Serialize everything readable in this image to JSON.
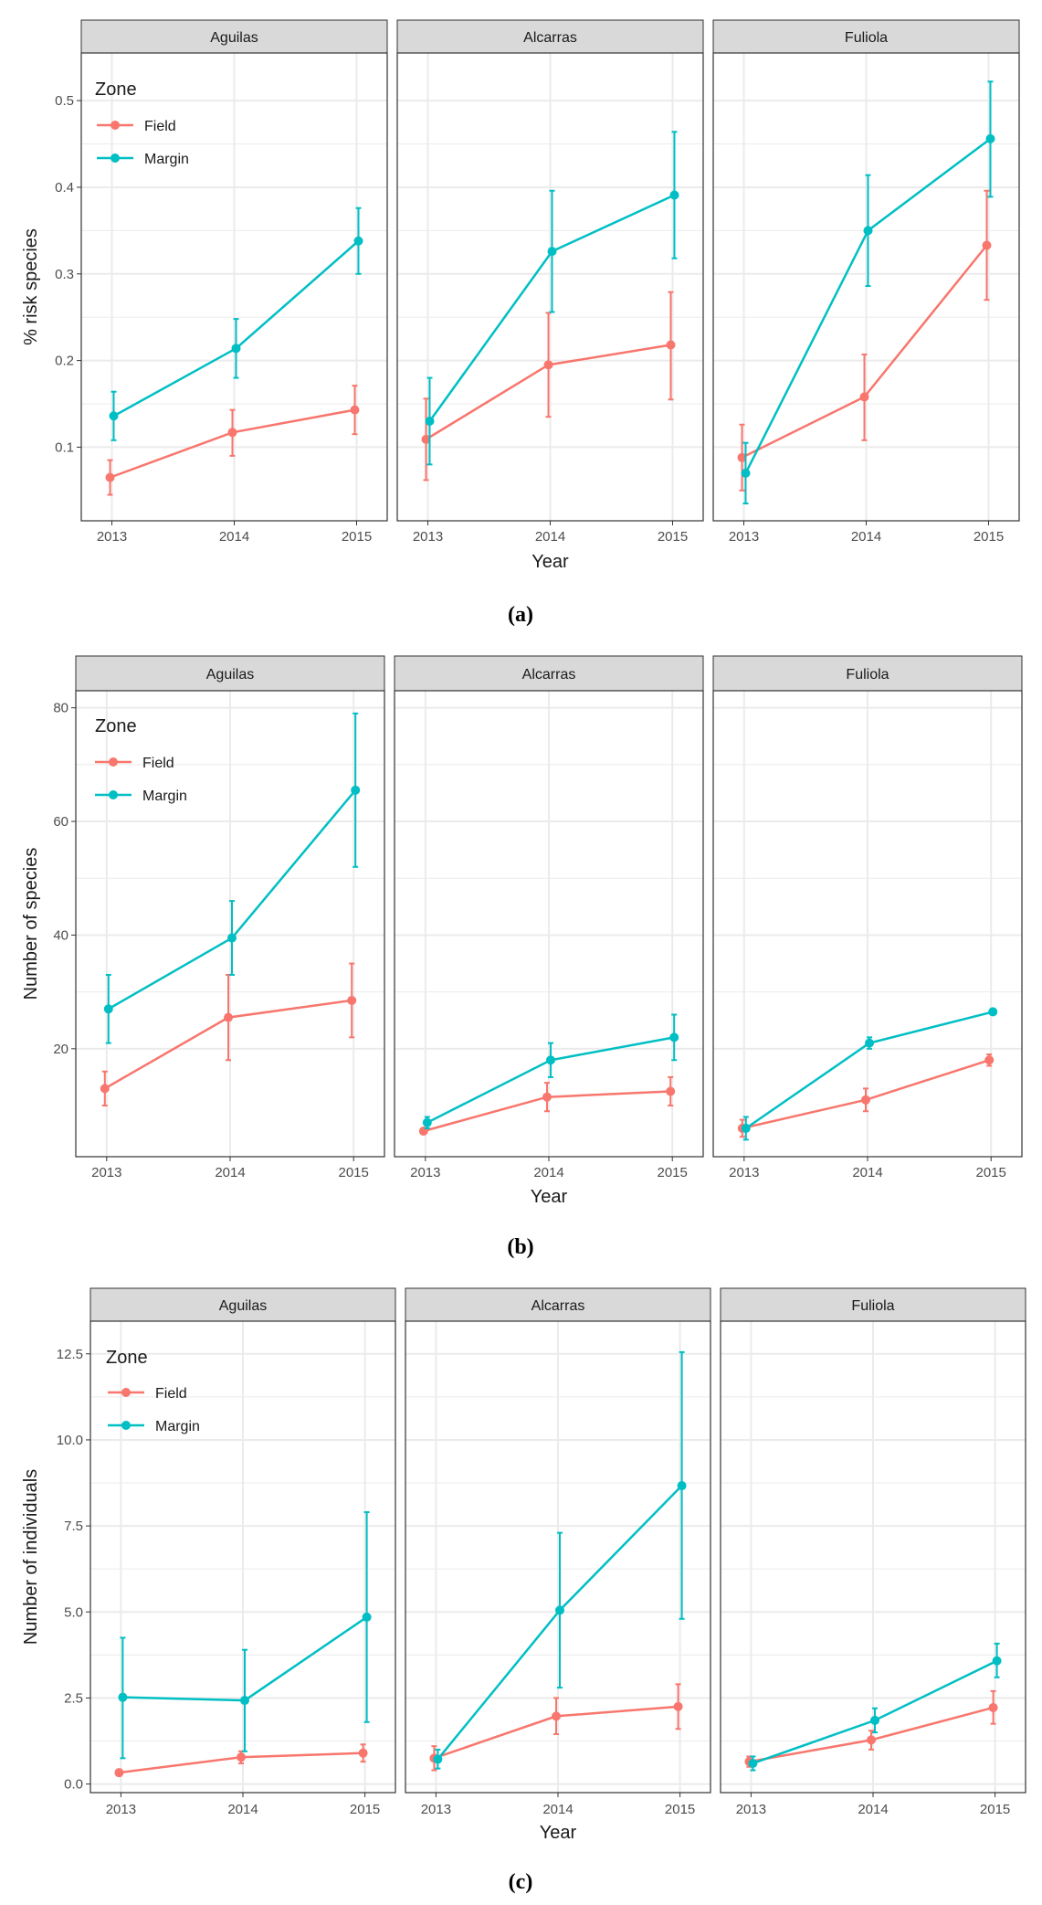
{
  "chart_data": [
    {
      "type": "line",
      "caption": "(a)",
      "ylabel": "% risk species",
      "xlabel": "Year",
      "ylim": [
        0.015,
        0.555
      ],
      "yticks": [
        0.1,
        0.2,
        0.3,
        0.4,
        0.5
      ],
      "ytick_labels": [
        "0.1",
        "0.2",
        "0.3",
        "0.4",
        "0.5"
      ],
      "categories": [
        "2013",
        "2014",
        "2015"
      ],
      "legend": {
        "title": "Zone",
        "entries": [
          "Field",
          "Margin"
        ]
      },
      "panels": [
        {
          "name": "Aguilas",
          "series": [
            {
              "name": "Field",
              "values": [
                0.065,
                0.117,
                0.143
              ],
              "lower": [
                0.045,
                0.09,
                0.115
              ],
              "upper": [
                0.085,
                0.143,
                0.171
              ]
            },
            {
              "name": "Margin",
              "values": [
                0.136,
                0.214,
                0.338
              ],
              "lower": [
                0.108,
                0.18,
                0.3
              ],
              "upper": [
                0.164,
                0.248,
                0.376
              ]
            }
          ]
        },
        {
          "name": "Alcarras",
          "series": [
            {
              "name": "Field",
              "values": [
                0.109,
                0.195,
                0.218
              ],
              "lower": [
                0.062,
                0.135,
                0.155
              ],
              "upper": [
                0.156,
                0.255,
                0.279
              ]
            },
            {
              "name": "Margin",
              "values": [
                0.13,
                0.326,
                0.391
              ],
              "lower": [
                0.08,
                0.256,
                0.318
              ],
              "upper": [
                0.18,
                0.396,
                0.464
              ]
            }
          ]
        },
        {
          "name": "Fuliola",
          "series": [
            {
              "name": "Field",
              "values": [
                0.088,
                0.158,
                0.333
              ],
              "lower": [
                0.05,
                0.108,
                0.27
              ],
              "upper": [
                0.126,
                0.207,
                0.396
              ]
            },
            {
              "name": "Margin",
              "values": [
                0.07,
                0.35,
                0.456
              ],
              "lower": [
                0.035,
                0.286,
                0.389
              ],
              "upper": [
                0.105,
                0.414,
                0.522
              ]
            }
          ]
        }
      ]
    },
    {
      "type": "line",
      "caption": "(b)",
      "ylabel": "Number of species",
      "xlabel": "Year",
      "ylim": [
        1,
        83
      ],
      "yticks": [
        20,
        40,
        60,
        80
      ],
      "ytick_labels": [
        "20",
        "40",
        "60",
        "80"
      ],
      "categories": [
        "2013",
        "2014",
        "2015"
      ],
      "legend": {
        "title": "Zone",
        "entries": [
          "Field",
          "Margin"
        ]
      },
      "panels": [
        {
          "name": "Aguilas",
          "series": [
            {
              "name": "Field",
              "values": [
                13,
                25.5,
                28.5
              ],
              "lower": [
                10,
                18,
                22
              ],
              "upper": [
                16,
                33,
                35
              ]
            },
            {
              "name": "Margin",
              "values": [
                27,
                39.5,
                65.5
              ],
              "lower": [
                21,
                33,
                52
              ],
              "upper": [
                33,
                46,
                79
              ]
            }
          ]
        },
        {
          "name": "Alcarras",
          "series": [
            {
              "name": "Field",
              "values": [
                5.5,
                11.5,
                12.5
              ],
              "lower": [
                5,
                9,
                10
              ],
              "upper": [
                6,
                14,
                15
              ]
            },
            {
              "name": "Margin",
              "values": [
                7,
                18,
                22
              ],
              "lower": [
                6,
                15,
                18
              ],
              "upper": [
                8,
                21,
                26
              ]
            }
          ]
        },
        {
          "name": "Fuliola",
          "series": [
            {
              "name": "Field",
              "values": [
                6,
                11,
                18
              ],
              "lower": [
                4.5,
                9,
                17
              ],
              "upper": [
                7.5,
                13,
                19
              ]
            },
            {
              "name": "Margin",
              "values": [
                6,
                21,
                26.5
              ],
              "lower": [
                4,
                20,
                26
              ],
              "upper": [
                8,
                22,
                27
              ]
            }
          ]
        }
      ]
    },
    {
      "type": "line",
      "caption": "(c)",
      "ylabel": "Number of individuals",
      "xlabel": "Year",
      "ylim": [
        -0.25,
        13.45
      ],
      "yticks": [
        0,
        2.5,
        5,
        7.5,
        10,
        12.5
      ],
      "ytick_labels": [
        "0.0",
        "2.5",
        "5.0",
        "7.5",
        "10.0",
        "12.5"
      ],
      "categories": [
        "2013",
        "2014",
        "2015"
      ],
      "legend": {
        "title": "Zone",
        "entries": [
          "Field",
          "Margin"
        ]
      },
      "panels": [
        {
          "name": "Aguilas",
          "series": [
            {
              "name": "Field",
              "values": [
                0.33,
                0.78,
                0.9
              ],
              "lower": [
                0.25,
                0.6,
                0.65
              ],
              "upper": [
                0.42,
                0.95,
                1.15
              ]
            },
            {
              "name": "Margin",
              "values": [
                2.52,
                2.43,
                4.85
              ],
              "lower": [
                0.75,
                0.95,
                1.8
              ],
              "upper": [
                4.25,
                3.9,
                7.9
              ]
            }
          ]
        },
        {
          "name": "Alcarras",
          "series": [
            {
              "name": "Field",
              "values": [
                0.75,
                1.97,
                2.25
              ],
              "lower": [
                0.4,
                1.45,
                1.6
              ],
              "upper": [
                1.1,
                2.5,
                2.9
              ]
            },
            {
              "name": "Margin",
              "values": [
                0.72,
                5.05,
                8.67
              ],
              "lower": [
                0.45,
                2.8,
                4.8
              ],
              "upper": [
                1.0,
                7.3,
                12.55
              ]
            }
          ]
        },
        {
          "name": "Fuliola",
          "series": [
            {
              "name": "Field",
              "values": [
                0.65,
                1.28,
                2.22
              ],
              "lower": [
                0.5,
                1.0,
                1.75
              ],
              "upper": [
                0.8,
                1.55,
                2.7
              ]
            },
            {
              "name": "Margin",
              "values": [
                0.6,
                1.85,
                3.58
              ],
              "lower": [
                0.4,
                1.5,
                3.1
              ],
              "upper": [
                0.8,
                2.2,
                4.08
              ]
            }
          ]
        }
      ]
    }
  ],
  "colors": {
    "Field": "#F8766D",
    "Margin": "#00BFC4",
    "strip": "#D9D9D9",
    "grid": "#EBEBEB",
    "axis_text": "#4D4D4D"
  }
}
